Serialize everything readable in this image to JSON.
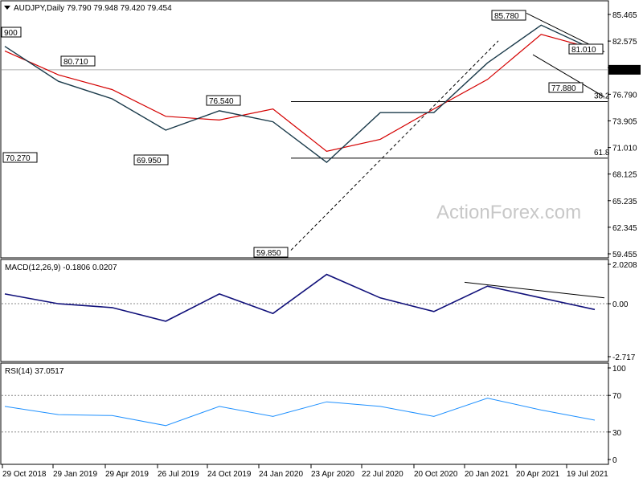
{
  "price": {
    "header": "AUDJPY,Daily  79.790 79.948 79.420 79.454",
    "current_price_label": "79.454",
    "y_ticks": [
      "85.465",
      "82.575",
      "79.685",
      "76.790",
      "73.905",
      "71.010",
      "68.125",
      "65.235",
      "62.345",
      "59.455"
    ],
    "fib_levels": [
      {
        "label": "38.2",
        "value": 76.0
      },
      {
        "label": "61.8",
        "value": 69.85
      }
    ],
    "annotations": [
      {
        "label": "80.710",
        "value": 80.71
      },
      {
        "label": "76.540",
        "value": 76.54
      },
      {
        "label": "69.950",
        "value": 69.95
      },
      {
        "label": "70.270",
        "value": 70.27
      },
      {
        "label": "59.850",
        "value": 59.85
      },
      {
        "label": "85.780",
        "value": 85.78
      },
      {
        "label": "81.010",
        "value": 81.01
      },
      {
        "label": "77.880",
        "value": 77.88
      },
      {
        "label": "900",
        "value": 82.9
      }
    ],
    "watermark": "ActionForex.com"
  },
  "macd": {
    "header": "MACD(12,26,9) -0.1806 0.0207",
    "y_ticks": [
      "2.0208",
      "0.00",
      "-2.717"
    ]
  },
  "rsi": {
    "header": "RSI(14) 37.0517",
    "y_ticks": [
      "100",
      "70",
      "30",
      "0"
    ]
  },
  "x_ticks": [
    "29 Oct 2018",
    "29 Jan 2019",
    "29 Apr 2019",
    "26 Jul 2019",
    "24 Oct 2019",
    "24 Jan 2020",
    "23 Apr 2020",
    "22 Jul 2020",
    "20 Oct 2020",
    "20 Jan 2021",
    "20 Apr 2021",
    "19 Jul 2021"
  ],
  "chart_data": [
    {
      "type": "line",
      "title": "AUDJPY,Daily",
      "x": [
        "29 Oct 2018",
        "29 Jan 2019",
        "29 Apr 2019",
        "26 Jul 2019",
        "24 Oct 2019",
        "24 Jan 2020",
        "23 Apr 2020",
        "22 Jul 2020",
        "20 Oct 2020",
        "20 Jan 2021",
        "20 Apr 2021",
        "19 Jul 2021"
      ],
      "series": [
        {
          "values": [
            82.0,
            78.2,
            76.3,
            72.9,
            75.0,
            73.8,
            69.4,
            74.8,
            74.8,
            80.2,
            84.3,
            81.6
          ]
        },
        {
          "values": [
            81.5,
            78.9,
            77.3,
            74.4,
            74.0,
            75.2,
            70.6,
            71.9,
            75.2,
            78.4,
            83.3,
            81.7
          ]
        }
      ],
      "ylim": [
        59.455,
        85.465
      ]
    },
    {
      "type": "line",
      "title": "MACD(12,26,9)",
      "x": [
        "29 Oct 2018",
        "29 Jan 2019",
        "29 Apr 2019",
        "26 Jul 2019",
        "24 Oct 2019",
        "24 Jan 2020",
        "23 Apr 2020",
        "22 Jul 2020",
        "20 Oct 2020",
        "20 Jan 2021",
        "20 Apr 2021",
        "19 Jul 2021"
      ],
      "series": [
        {
          "values": [
            0.5,
            0.0,
            -0.2,
            -0.9,
            0.5,
            -0.5,
            1.5,
            0.3,
            -0.4,
            0.9,
            0.3,
            -0.3
          ]
        }
      ],
      "ylim": [
        -2.717,
        2.0208
      ]
    },
    {
      "type": "line",
      "title": "RSI(14)",
      "x": [
        "29 Oct 2018",
        "29 Jan 2019",
        "29 Apr 2019",
        "26 Jul 2019",
        "24 Oct 2019",
        "24 Jan 2020",
        "23 Apr 2020",
        "22 Jul 2020",
        "20 Oct 2020",
        "20 Jan 2021",
        "20 Apr 2021",
        "19 Jul 2021"
      ],
      "series": [
        {
          "values": [
            58,
            49,
            48,
            37,
            58,
            47,
            63,
            58,
            47,
            67,
            54,
            43
          ]
        }
      ],
      "ylim": [
        0,
        100
      ]
    }
  ]
}
